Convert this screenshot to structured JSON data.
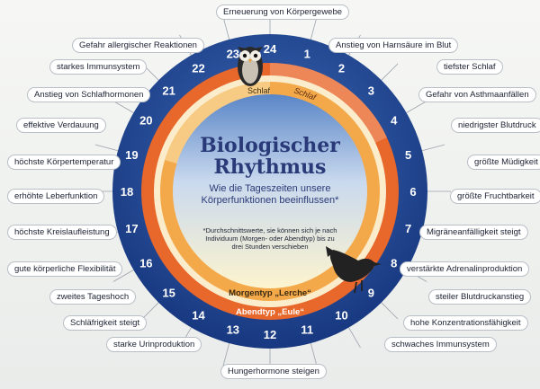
{
  "title_line1": "Biologischer",
  "title_line2": "Rhythmus",
  "subtitle": "Wie die Tageszeiten unsere Körperfunktionen beeinflussen*",
  "footnote": "*Durchschnittswerte, sie können sich je nach Individuum (Morgen- oder Abendtyp) bis zu drei Stunden verschieben",
  "morning_type_label": "Morgentyp „Lerche“",
  "evening_type_label": "Abendtyp „Eule“",
  "sleep_label_owl": "Schlaf",
  "sleep_label_lark": "Schlaf",
  "hours": [
    "1",
    "2",
    "3",
    "4",
    "5",
    "6",
    "7",
    "8",
    "9",
    "10",
    "11",
    "12",
    "13",
    "14",
    "15",
    "16",
    "17",
    "18",
    "19",
    "20",
    "21",
    "22",
    "23",
    "24"
  ],
  "labels_right": [
    "Anstieg von Harnsäure im Blut",
    "tiefster Schlaf",
    "Gefahr von Asthmaanfällen",
    "niedrigster Blutdruck",
    "größte Müdigkeit",
    "größte Fruchtbarkeit",
    "Migräneanfälligkeit steigt",
    "verstärkte Adrenalinproduktion",
    "steiler Blutdruckanstieg",
    "hohe Konzentrationsfähigkeit",
    "schwaches Immunsystem"
  ],
  "label_bottom": "Hungerhormone steigen",
  "labels_left": [
    "starke Urinproduktion",
    "Schläfrigkeit steigt",
    "zweites Tageshoch",
    "gute körperliche Flexibilität",
    "höchste Kreislaufleistung",
    "erhöhte Leberfunktion",
    "höchste Körpertemperatur",
    "effektive Verdauung",
    "Anstieg von Schlafhormonen",
    "starkes Immunsystem",
    "Gefahr allergischer Reaktionen"
  ],
  "label_top": "Erneuerung von Körpergewebe",
  "colors": {
    "outer_ring": "#1f3f8e",
    "owl_ring": "#e8672a",
    "lark_ring": "#f3a94a",
    "center_top": "#5e87c6",
    "center_bottom": "#fdf6d8"
  }
}
